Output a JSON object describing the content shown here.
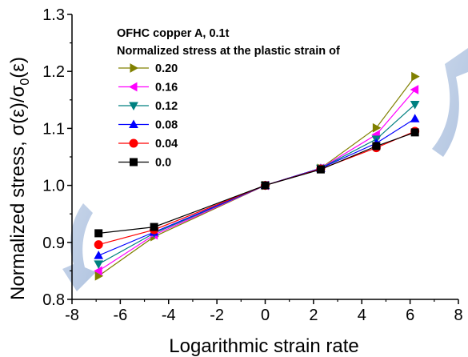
{
  "chart_data": {
    "type": "line",
    "xlabel": "Logarithmic strain rate",
    "ylabel_parts": {
      "main": "Normalized stress, σ(ε)/σ",
      "sub": "0",
      "tail": "(ε)"
    },
    "xlim": [
      -8,
      8
    ],
    "ylim": [
      0.8,
      1.3
    ],
    "xticks": [
      -8,
      -6,
      -4,
      -2,
      0,
      2,
      4,
      6,
      8
    ],
    "yticks": [
      0.8,
      0.9,
      1.0,
      1.1,
      1.2,
      1.3
    ],
    "ytick_labels": [
      "0.8",
      "0.9",
      "1.0",
      "1.1",
      "1.2",
      "1.3"
    ],
    "grid": false,
    "legend_placement": "top-left",
    "legend_title_lines": [
      "OFHC copper A, 0.1t",
      "Normalized stress at the plastic strain of"
    ],
    "x": [
      -6.9,
      -4.6,
      0,
      2.3,
      4.6,
      6.2
    ],
    "series": [
      {
        "name": "0.20",
        "color": "#808000",
        "marker": "triangle-right",
        "values": [
          0.841,
          0.91,
          1.0,
          1.03,
          1.101,
          1.191
        ]
      },
      {
        "name": "0.16",
        "color": "#ff00ff",
        "marker": "triangle-left",
        "values": [
          0.85,
          0.913,
          1.0,
          1.03,
          1.089,
          1.168
        ]
      },
      {
        "name": "0.12",
        "color": "#008080",
        "marker": "triangle-down",
        "values": [
          0.862,
          0.916,
          1.0,
          1.03,
          1.081,
          1.142
        ]
      },
      {
        "name": "0.08",
        "color": "#0000ff",
        "marker": "triangle-up",
        "values": [
          0.877,
          0.918,
          1.0,
          1.03,
          1.074,
          1.117
        ]
      },
      {
        "name": "0.04",
        "color": "#ff0000",
        "marker": "circle",
        "values": [
          0.896,
          0.922,
          1.0,
          1.029,
          1.066,
          1.095
        ]
      },
      {
        "name": "0.0",
        "color": "#000000",
        "marker": "square",
        "values": [
          0.916,
          0.927,
          1.0,
          1.028,
          1.069,
          1.093
        ]
      }
    ],
    "annotations": {
      "arrow_color": "#b7c9e2",
      "arrows": [
        "curved-arrow-lower-left",
        "curved-arrow-upper-right"
      ]
    }
  }
}
